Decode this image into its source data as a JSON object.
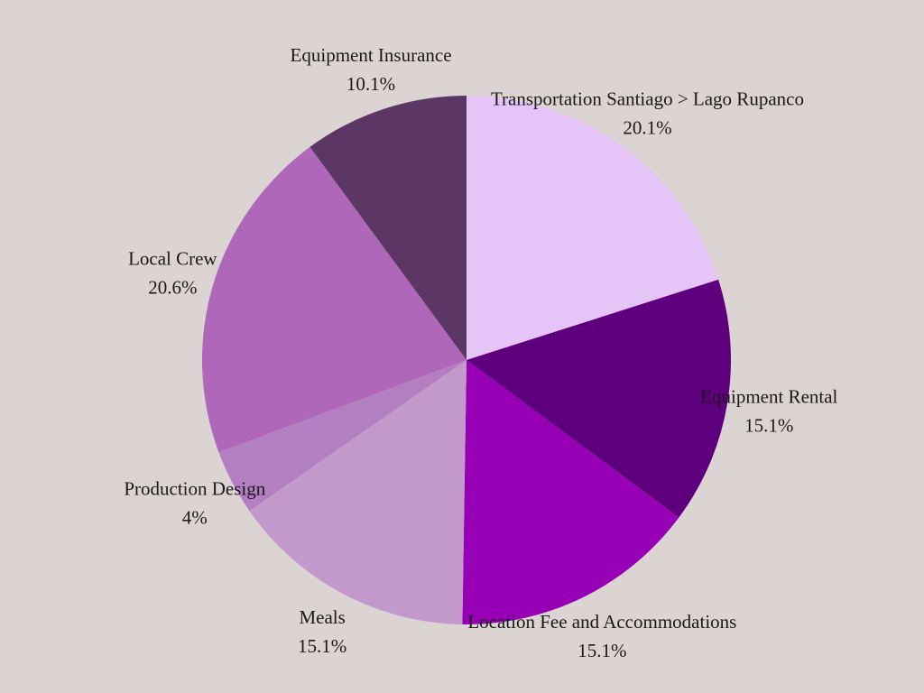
{
  "background_color": "#dcd3d3",
  "chart_data": {
    "type": "pie",
    "start_angle_deg": 0,
    "direction": "clockwise",
    "slices": [
      {
        "label": "Transportation Santiago > Lago Rupanco",
        "value": 20.1,
        "percent_label": "20.1%",
        "color": "#e5c4f7"
      },
      {
        "label": "Equipment Rental",
        "value": 15.1,
        "percent_label": "15.1%",
        "color": "#5e007e"
      },
      {
        "label": "Location Fee and Accommodations",
        "value": 15.1,
        "percent_label": "15.1%",
        "color": "#9700b5"
      },
      {
        "label": "Meals",
        "value": 15.1,
        "percent_label": "15.1%",
        "color": "#c399cb"
      },
      {
        "label": "Production Design",
        "value": 4.0,
        "percent_label": "4%",
        "color": "#b37fc1"
      },
      {
        "label": "Local Crew",
        "value": 20.6,
        "percent_label": "20.6%",
        "color": "#af67b9"
      },
      {
        "label": "Equipment Insurance",
        "value": 10.1,
        "percent_label": "10.1%",
        "color": "#5c3766"
      }
    ]
  }
}
